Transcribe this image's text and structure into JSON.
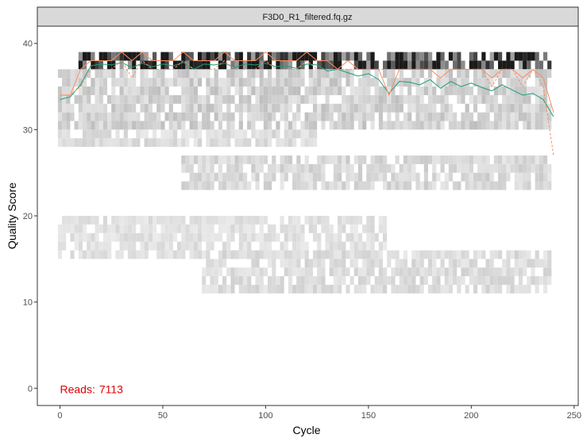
{
  "chart_data": {
    "type": "heatmap",
    "facet_title": "F3D0_R1_filtered.fq.gz",
    "xlabel": "Cycle",
    "ylabel": "Quality Score",
    "xlim": [
      -11,
      252
    ],
    "ylim": [
      -2,
      42
    ],
    "x_ticks": [
      0,
      50,
      100,
      150,
      200,
      250
    ],
    "y_ticks": [
      0,
      10,
      20,
      30,
      40
    ],
    "grid": false,
    "annotation": {
      "label": "Reads:",
      "value": "7113",
      "x": 0,
      "y": 0,
      "color": "#e00000"
    },
    "colors": {
      "tile_dark": "#1a1a1a",
      "tile_light": "#f2f2f2",
      "mean_line": "#1b9e77",
      "median_line": "#fc8d62",
      "quartile_line": "#fc8d62",
      "annotation": "#e00000",
      "strip_fill": "#d9d9d9",
      "panel_border": "#333333"
    },
    "tile_bands": [
      {
        "q_low": 37,
        "q_high": 39,
        "x_start": 10,
        "x_end": 240,
        "intensity": 0.9
      },
      {
        "q_low": 30,
        "q_high": 37,
        "x_start": 0,
        "x_end": 240,
        "intensity": 0.15
      },
      {
        "q_low": 28,
        "q_high": 30,
        "x_start": 0,
        "x_end": 125,
        "intensity": 0.1
      },
      {
        "q_low": 23,
        "q_high": 27,
        "x_start": 60,
        "x_end": 240,
        "intensity": 0.12
      },
      {
        "q_low": 15,
        "q_high": 20,
        "x_start": 0,
        "x_end": 160,
        "intensity": 0.08
      },
      {
        "q_low": 11,
        "q_high": 16,
        "x_start": 70,
        "x_end": 240,
        "intensity": 0.1
      }
    ],
    "series": [
      {
        "name": "mean",
        "x": [
          0,
          5,
          10,
          15,
          20,
          25,
          30,
          35,
          40,
          45,
          50,
          55,
          60,
          65,
          70,
          75,
          80,
          85,
          90,
          95,
          100,
          105,
          110,
          115,
          120,
          125,
          130,
          135,
          140,
          145,
          150,
          155,
          160,
          165,
          170,
          175,
          180,
          185,
          190,
          195,
          200,
          205,
          210,
          215,
          220,
          225,
          230,
          235,
          240
        ],
        "values": [
          33.5,
          33.8,
          35.2,
          37.4,
          37.6,
          37.5,
          37.8,
          37.2,
          37.7,
          37.3,
          37.6,
          37.4,
          37.8,
          37.0,
          37.6,
          37.5,
          37.7,
          37.2,
          37.6,
          37.5,
          37.7,
          37.3,
          37.4,
          37.1,
          37.6,
          37.5,
          36.8,
          37.0,
          36.6,
          36.2,
          36.5,
          35.8,
          34.2,
          35.6,
          35.5,
          35.2,
          35.8,
          34.8,
          35.6,
          35.0,
          35.4,
          34.9,
          34.5,
          35.2,
          34.6,
          34.0,
          34.2,
          33.5,
          31.5
        ]
      },
      {
        "name": "median",
        "x": [
          0,
          5,
          10,
          15,
          20,
          25,
          30,
          35,
          40,
          45,
          50,
          55,
          60,
          65,
          70,
          75,
          80,
          85,
          90,
          95,
          100,
          105,
          110,
          115,
          120,
          125,
          130,
          135,
          140,
          145,
          150,
          155,
          160,
          165,
          170,
          175,
          180,
          185,
          190,
          195,
          200,
          205,
          210,
          215,
          220,
          225,
          230,
          235,
          240
        ],
        "values": [
          34,
          34,
          37,
          38,
          38,
          38,
          39,
          38,
          39,
          38,
          38,
          38,
          39,
          38,
          38,
          38,
          39,
          38,
          38,
          38,
          39,
          38,
          38,
          38,
          39,
          38,
          38,
          37,
          38,
          37,
          37,
          37,
          34,
          37,
          37,
          37,
          37,
          36,
          37,
          37,
          37,
          37,
          36,
          37,
          37,
          36,
          37,
          36,
          32
        ]
      },
      {
        "name": "quartile",
        "x": [
          0,
          5,
          10,
          15,
          20,
          25,
          30,
          35,
          40,
          45,
          50,
          55,
          60,
          65,
          70,
          75,
          80,
          85,
          90,
          95,
          100,
          105,
          110,
          115,
          120,
          125,
          130,
          135,
          140,
          145,
          150,
          155,
          160,
          165,
          170,
          175,
          180,
          185,
          190,
          195,
          200,
          205,
          210,
          215,
          220,
          225,
          230,
          235,
          240
        ],
        "values": [
          34,
          34,
          35,
          37,
          37,
          37,
          38,
          36,
          38,
          37,
          37,
          37,
          38,
          37,
          37,
          37,
          38,
          37,
          37,
          37,
          38,
          37,
          37,
          37,
          38,
          37,
          37,
          37,
          37,
          37,
          37,
          37,
          37,
          37,
          37,
          37,
          37,
          37,
          37,
          37,
          37,
          37,
          35,
          37,
          37,
          35,
          37,
          35,
          27
        ]
      }
    ]
  }
}
